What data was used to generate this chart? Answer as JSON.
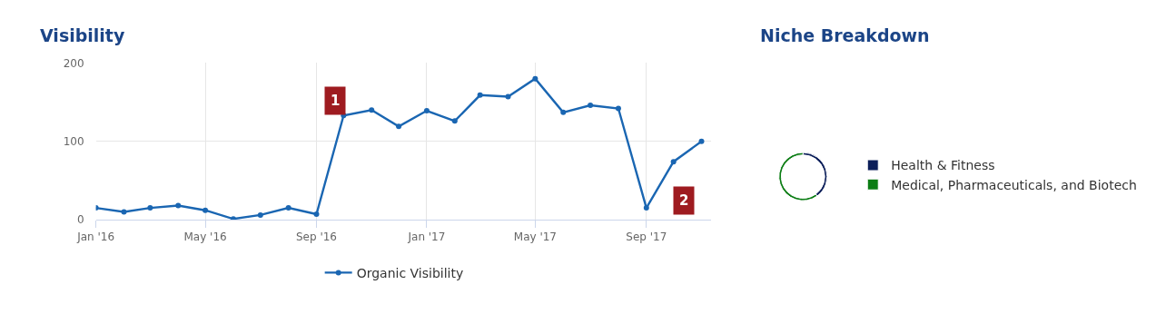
{
  "chart_data": [
    {
      "type": "line",
      "title": "Visibility",
      "x": [
        "2016-01",
        "2016-02",
        "2016-03",
        "2016-04",
        "2016-05",
        "2016-06",
        "2016-07",
        "2016-08",
        "2016-09",
        "2016-10",
        "2016-11",
        "2016-12",
        "2017-01",
        "2017-02",
        "2017-03",
        "2017-04",
        "2017-05",
        "2017-06",
        "2017-07",
        "2017-08",
        "2017-09",
        "2017-10",
        "2017-11"
      ],
      "series": [
        {
          "name": "Organic Visibility",
          "color": "#1a66b2",
          "values": [
            15,
            10,
            15,
            18,
            12,
            1,
            6,
            15,
            7,
            133,
            140,
            119,
            139,
            126,
            159,
            157,
            180,
            137,
            146,
            142,
            15,
            74,
            100
          ]
        }
      ],
      "xlim": [
        "2016-01-01",
        "2017-11-12"
      ],
      "xticks": [
        {
          "value": "2016-01",
          "label": "Jan '16"
        },
        {
          "value": "2016-05",
          "label": "May '16"
        },
        {
          "value": "2016-09",
          "label": "Sep '16"
        },
        {
          "value": "2017-01",
          "label": "Jan '17"
        },
        {
          "value": "2017-05",
          "label": "May '17"
        },
        {
          "value": "2017-09",
          "label": "Sep '17"
        }
      ],
      "ylim": [
        0,
        200
      ],
      "yticks": [
        0,
        100,
        200
      ],
      "grid": true,
      "marker": "circle",
      "line_style": "solid",
      "legend": "bottom",
      "annotations": [
        {
          "text": "1",
          "x": "2016-09-22",
          "y": 152
        },
        {
          "text": "2",
          "x": "2017-10-12",
          "y": 24
        }
      ]
    },
    {
      "type": "donut",
      "title": "Niche Breakdown",
      "categories": [
        "Health & Fitness",
        "Medical, Pharmaceuticals, and Biotech"
      ],
      "values": [
        40,
        60
      ],
      "colors": [
        "#0c1f5a",
        "#0b7d14"
      ],
      "legend": "right"
    }
  ]
}
